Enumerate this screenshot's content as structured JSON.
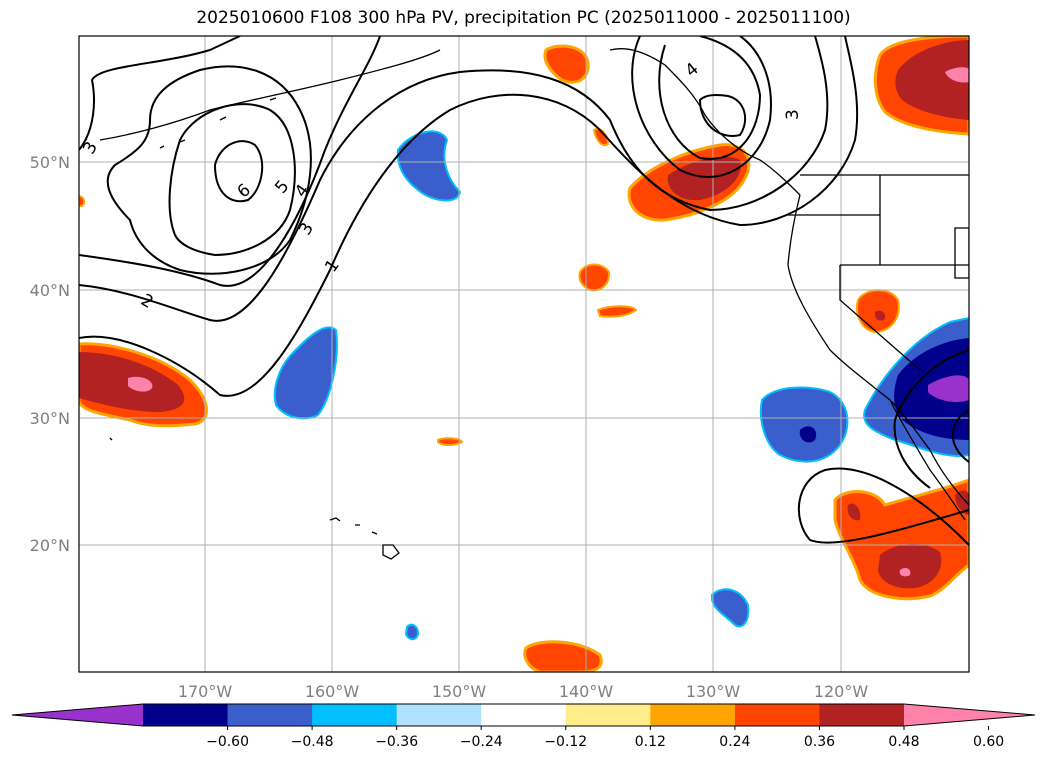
{
  "title": "2025010600 F108 300 hPa PV, precipitation PC (2025011000 - 2025011100)",
  "latitude_labels": [
    "50°N",
    "40°N",
    "30°N",
    "20°N"
  ],
  "longitude_labels": [
    "170°W",
    "160°W",
    "150°W",
    "140°W",
    "130°W",
    "120°W"
  ],
  "contour_labels": [
    "6",
    "5",
    "4",
    "3",
    "3",
    "2",
    "1",
    "3",
    "4"
  ],
  "colorbar": {
    "ticks": [
      "−0.60",
      "−0.48",
      "−0.36",
      "−0.24",
      "−0.12",
      "0.12",
      "0.24",
      "0.36",
      "0.48",
      "0.60"
    ],
    "colors": [
      "#9932cc",
      "#00008b",
      "#3a5fcd",
      "#00bfff",
      "#b0e2ff",
      "#ffffff",
      "#ffec8b",
      "#ffa500",
      "#ff4500",
      "#b22222",
      "#ff82ab"
    ]
  },
  "colors": {
    "gridline": "#b0b0b0",
    "coastline": "#000000",
    "contour": "#000000"
  }
}
